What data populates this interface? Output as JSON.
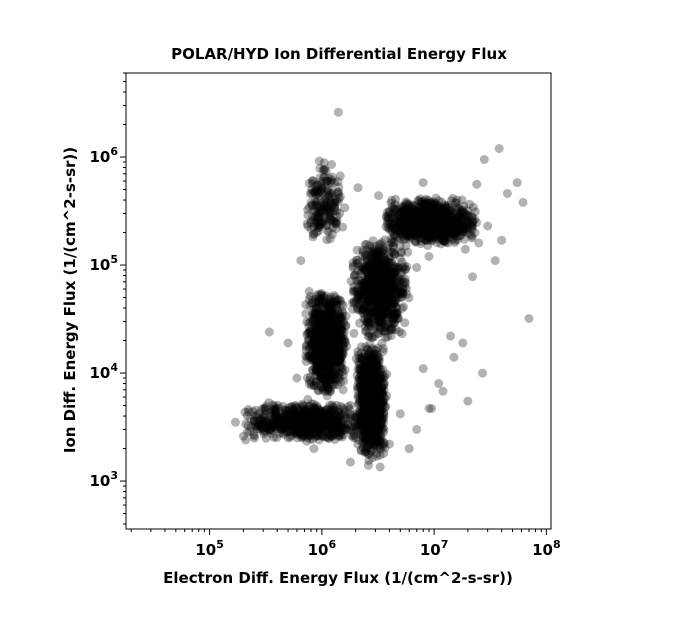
{
  "chart_data": {
    "type": "scatter",
    "title": "POLAR/HYD  Ion Differential Energy Flux",
    "xlabel": "Electron Diff. Energy Flux (1/(cm^2-s-sr))",
    "ylabel": "Ion Diff. Energy Flux (1/(cm^2-s-sr))",
    "xscale": "log",
    "yscale": "log",
    "xlim": [
      18000,
      110000000
    ],
    "ylim": [
      360,
      6000000
    ],
    "xticks": [
      {
        "base": "10",
        "exp": "5",
        "value": 100000
      },
      {
        "base": "10",
        "exp": "6",
        "value": 1000000
      },
      {
        "base": "10",
        "exp": "7",
        "value": 10000000
      },
      {
        "base": "10",
        "exp": "8",
        "value": 100000000
      }
    ],
    "yticks": [
      {
        "base": "10",
        "exp": "3",
        "value": 1000
      },
      {
        "base": "10",
        "exp": "4",
        "value": 10000
      },
      {
        "base": "10",
        "exp": "5",
        "value": 100000
      },
      {
        "base": "10",
        "exp": "6",
        "value": 1000000
      }
    ],
    "grid": false,
    "marker_color": "#000000",
    "marker_opacity": 0.3,
    "series": [
      {
        "points": [
          [
            1400000,
            2600000
          ],
          [
            8000000,
            580000
          ],
          [
            38000000,
            1200000
          ],
          [
            28000000,
            950000
          ],
          [
            45000000,
            460000
          ],
          [
            55000000,
            580000
          ],
          [
            62000000,
            380000
          ],
          [
            70000000,
            32000
          ],
          [
            12000000,
            6800
          ],
          [
            18000000,
            19000
          ],
          [
            27000000,
            10000
          ],
          [
            15000000,
            14000
          ],
          [
            20000000,
            5500
          ],
          [
            22000000,
            78000
          ],
          [
            35000000,
            110000
          ],
          [
            40000000,
            170000
          ],
          [
            9000000,
            4700
          ],
          [
            11000000,
            8000
          ],
          [
            8000000,
            11000
          ],
          [
            14000000,
            22000
          ],
          [
            170000,
            3500
          ],
          [
            200000,
            2600
          ],
          [
            210000,
            2400
          ],
          [
            250000,
            2500
          ],
          [
            300000,
            3100
          ],
          [
            340000,
            24000
          ],
          [
            380000,
            4100
          ],
          [
            420000,
            3200
          ],
          [
            500000,
            19000
          ],
          [
            600000,
            9000
          ],
          [
            750000,
            5700
          ],
          [
            850000,
            2000
          ],
          [
            950000,
            920000
          ],
          [
            1050000,
            760000
          ],
          [
            1150000,
            640000
          ],
          [
            1300000,
            320000
          ],
          [
            800000,
            380000
          ],
          [
            900000,
            200000
          ],
          [
            650000,
            110000
          ],
          [
            1200000,
            590000
          ],
          [
            1600000,
            340000
          ],
          [
            2100000,
            520000
          ],
          [
            3200000,
            440000
          ],
          [
            4200000,
            230000
          ],
          [
            5000000,
            350000
          ],
          [
            6000000,
            180000
          ],
          [
            10000000,
            370000
          ],
          [
            16000000,
            400000
          ],
          [
            24000000,
            560000
          ],
          [
            30000000,
            230000
          ],
          [
            25000000,
            160000
          ],
          [
            19000000,
            140000
          ],
          [
            3500000,
            55000
          ],
          [
            5500000,
            70000
          ],
          [
            7000000,
            95000
          ],
          [
            9000000,
            120000
          ],
          [
            1800000,
            1500
          ],
          [
            2600000,
            1400
          ],
          [
            3300000,
            1350
          ],
          [
            4000000,
            2200
          ],
          [
            7000000,
            3000
          ],
          [
            6000000,
            2000
          ],
          [
            5000000,
            4200
          ],
          [
            9500000,
            4700
          ]
        ],
        "clusters": [
          {
            "x_range": [
              700000,
              1700000
            ],
            "y_range": [
              6000,
              60000
            ],
            "count": 900
          },
          {
            "x_range": [
              200000,
              2600000
            ],
            "y_range": [
              2300,
              5500
            ],
            "count": 700
          },
          {
            "x_range": [
              2000000,
              3800000
            ],
            "y_range": [
              1500,
              20000
            ],
            "count": 900
          },
          {
            "x_range": [
              1800000,
              6000000
            ],
            "y_range": [
              20000,
              180000
            ],
            "count": 800
          },
          {
            "x_range": [
              3500000,
              25000000
            ],
            "y_range": [
              150000,
              420000
            ],
            "count": 900
          },
          {
            "x_range": [
              700000,
              1600000
            ],
            "y_range": [
              150000,
              950000
            ],
            "count": 180
          }
        ]
      }
    ]
  }
}
